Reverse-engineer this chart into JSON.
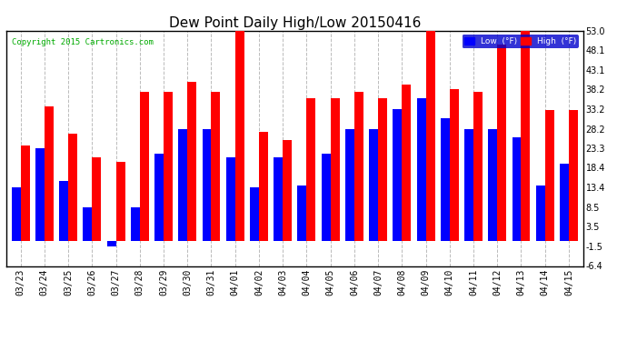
{
  "title": "Dew Point Daily High/Low 20150416",
  "copyright": "Copyright 2015 Cartronics.com",
  "dates": [
    "03/23",
    "03/24",
    "03/25",
    "03/26",
    "03/27",
    "03/28",
    "03/29",
    "03/30",
    "03/31",
    "04/01",
    "04/02",
    "04/03",
    "04/04",
    "04/05",
    "04/06",
    "04/07",
    "04/08",
    "04/09",
    "04/10",
    "04/11",
    "04/12",
    "04/13",
    "04/14",
    "04/15"
  ],
  "low": [
    13.4,
    23.3,
    15.0,
    8.5,
    -1.5,
    8.5,
    22.0,
    28.2,
    28.2,
    21.0,
    13.4,
    21.0,
    14.0,
    22.0,
    28.2,
    28.2,
    33.2,
    36.0,
    31.0,
    28.2,
    28.2,
    26.0,
    14.0,
    19.5
  ],
  "high": [
    24.0,
    34.0,
    27.0,
    21.0,
    20.0,
    37.5,
    37.5,
    40.0,
    37.5,
    53.0,
    27.5,
    25.5,
    36.0,
    36.0,
    37.5,
    36.0,
    39.5,
    53.0,
    38.2,
    37.5,
    49.5,
    53.0,
    33.0,
    33.0
  ],
  "low_color": "#0000ff",
  "high_color": "#ff0000",
  "bg_color": "#ffffff",
  "grid_color": "#bbbbbb",
  "yticks": [
    -6.4,
    -1.5,
    3.5,
    8.5,
    13.4,
    18.4,
    23.3,
    28.2,
    33.2,
    38.2,
    43.1,
    48.1,
    53.0
  ],
  "ylim": [
    -6.4,
    53.0
  ],
  "bar_width": 0.38,
  "title_fontsize": 11,
  "tick_fontsize": 7,
  "legend_bg": "#0000cc",
  "copyright_color": "#00aa00"
}
